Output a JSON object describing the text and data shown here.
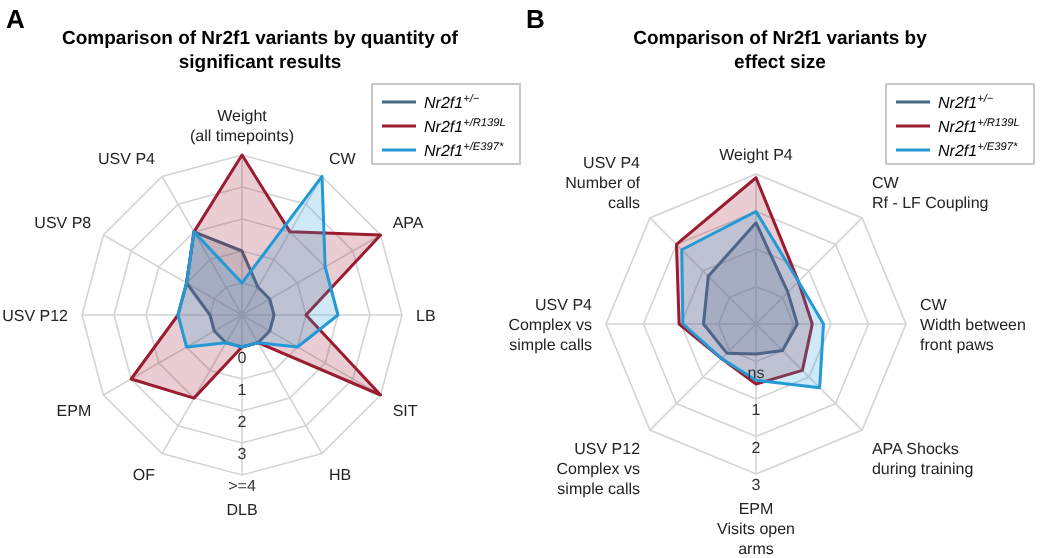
{
  "chart_data": [
    {
      "type": "radar",
      "title": "Comparison of Nr2f1 variants by quantity of\nsignificant results",
      "annotations": [
        "A"
      ],
      "categories": [
        "Weight\n(all timepoints)",
        "CW",
        "APA",
        "LB",
        "SIT",
        "HB",
        "DLB",
        "OF",
        "EPM",
        "USV P12",
        "USV P8",
        "USV P4"
      ],
      "ylim": [
        -1,
        4
      ],
      "yticks": [
        0,
        1,
        2,
        3,
        {
          "value": 4,
          "label": ">=4"
        }
      ],
      "grid": true,
      "legend": "top right",
      "series": [
        {
          "name": "Nr2f1$^{+/−}$",
          "color": "#4a6784",
          "values": [
            1,
            0,
            0,
            0,
            0,
            0,
            0,
            0,
            0,
            0,
            1,
            2
          ]
        },
        {
          "name": "Nr2f1$^{+/R139L}$",
          "color": "#9b1c31",
          "values": [
            4,
            2,
            4,
            1,
            4,
            0,
            0,
            2,
            3,
            1,
            1,
            2
          ]
        },
        {
          "name": "Nr2f1$^{+/E397*}$",
          "color": "#239ad6",
          "values": [
            0,
            4,
            2,
            2,
            1,
            0,
            0,
            0,
            1,
            1,
            1,
            2
          ]
        }
      ]
    },
    {
      "type": "radar",
      "title": "Comparison of Nr2f1 variants by\neffect size",
      "annotations": [
        "B"
      ],
      "categories": [
        "Weight P4",
        "CW\nRf - LF Coupling",
        "CW\nWidth between\nfront paws",
        "APA Shocks\nduring training",
        "EPM\nVisits open\narms",
        "USV P12\nComplex vs\nsimple calls",
        "USV P4\nComplex vs\nsimple calls",
        "USV P4\nNumber of\ncalls"
      ],
      "ylim": [
        -1,
        3
      ],
      "yticks": [
        {
          "value": 0,
          "label": "ns"
        },
        1,
        2,
        3
      ],
      "grid": true,
      "legend": "top right",
      "series": [
        {
          "name": "Nr2f1$^{+/−}$",
          "color": "#4a6784",
          "values": [
            1.7,
            0.2,
            0.1,
            0,
            -0.2,
            0.1,
            0.4,
            0.8
          ]
        },
        {
          "name": "Nr2f1$^{+/R139L}$",
          "color": "#9b1c31",
          "values": [
            2.9,
            0.6,
            0.5,
            0.75,
            0.6,
            0.3,
            1.05,
            2
          ]
        },
        {
          "name": "Nr2f1$^{+/E397*}$",
          "color": "#239ad6",
          "values": [
            2,
            0.6,
            0.8,
            1.4,
            0.5,
            0.3,
            0.95,
            1.8
          ]
        }
      ]
    }
  ]
}
